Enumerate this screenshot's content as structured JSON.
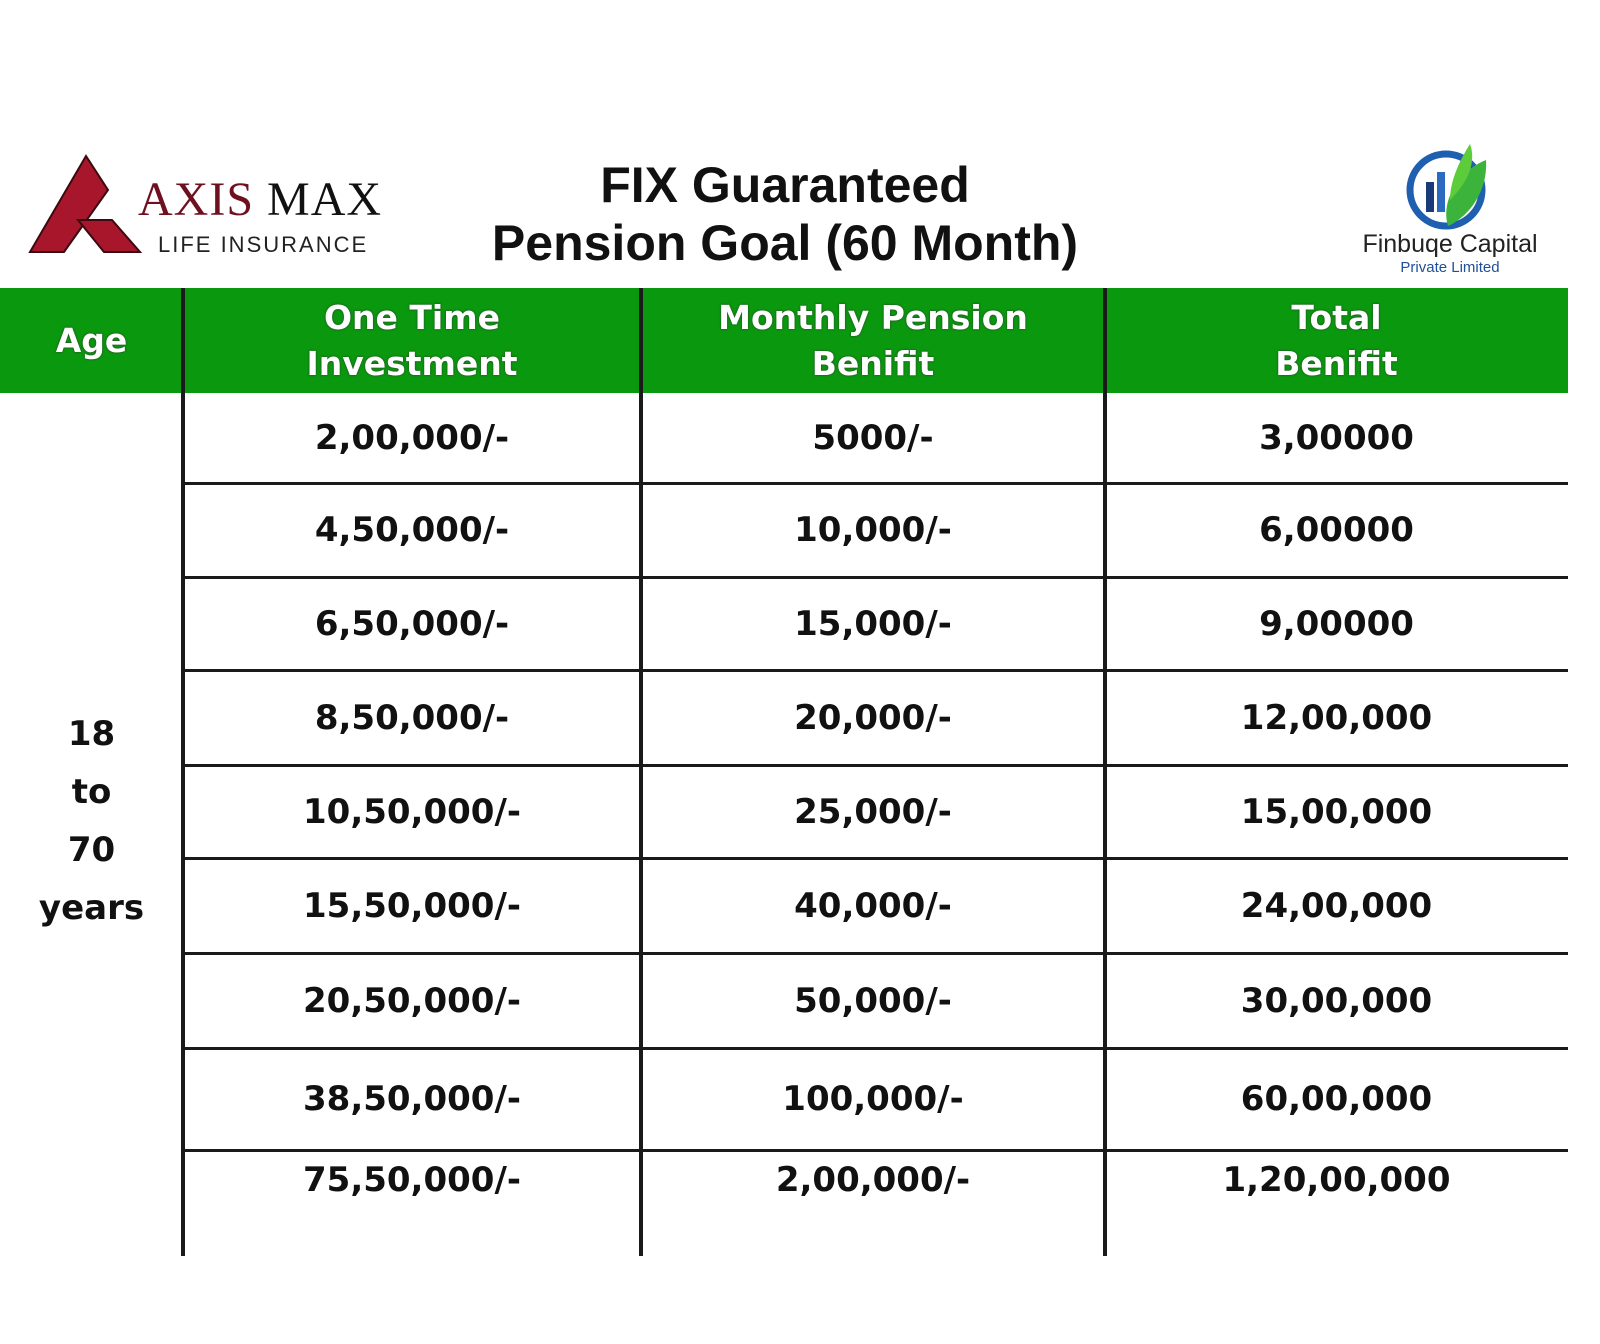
{
  "logos": {
    "axis_max": {
      "line1_a": "AXIS",
      "line1_b": "MAX",
      "line2": "LIFE INSURANCE",
      "color": "#a8162c"
    },
    "finbuqe": {
      "name": "Finbuqe Capital",
      "sub": "Private Limited"
    }
  },
  "title": {
    "line1": "FIX Guaranteed",
    "line2": "Pension Goal (60 Month)"
  },
  "table": {
    "header_color": "#0a980e",
    "columns": [
      "Age",
      "One Time\nInvestment",
      "Monthly Pension\nBenifit",
      "Total\nBenifit"
    ],
    "age_group": [
      "18",
      "to",
      "70",
      "years"
    ],
    "rows": [
      [
        "2,00,000/-",
        "5000/-",
        "3,00000"
      ],
      [
        "4,50,000/-",
        "10,000/-",
        "6,00000"
      ],
      [
        "6,50,000/-",
        "15,000/-",
        "9,00000"
      ],
      [
        "8,50,000/-",
        "20,000/-",
        "12,00,000"
      ],
      [
        "10,50,000/-",
        "25,000/-",
        "15,00,000"
      ],
      [
        "15,50,000/-",
        "40,000/-",
        "24,00,000"
      ],
      [
        "20,50,000/-",
        "50,000/-",
        "30,00,000"
      ],
      [
        "38,50,000/-",
        "100,000/-",
        "60,00,000"
      ],
      [
        "75,50,000/-",
        "2,00,000/-",
        "1,20,00,000"
      ]
    ]
  }
}
